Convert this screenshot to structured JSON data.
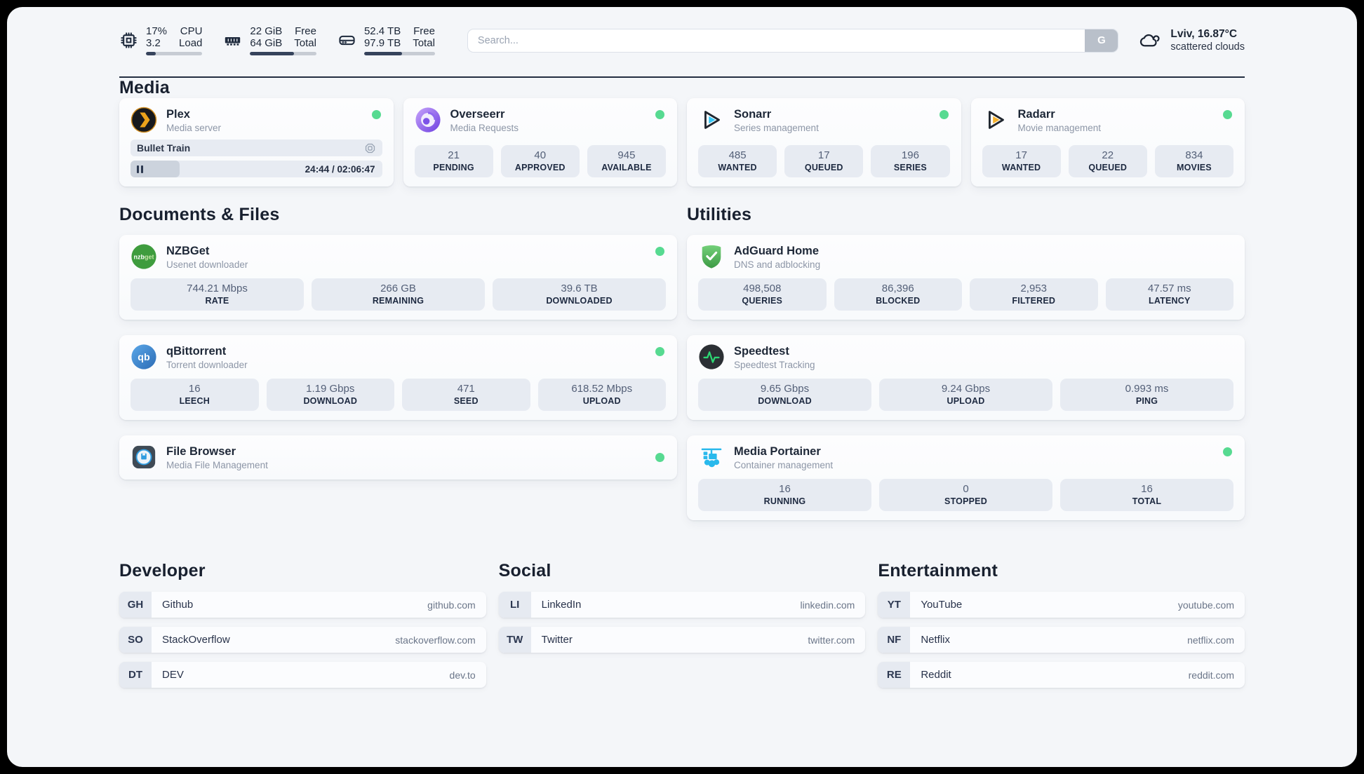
{
  "topbar": {
    "resources": [
      {
        "icon": "cpu-icon",
        "value1": "17%",
        "value2": "3.2",
        "label1": "CPU",
        "label2": "Load",
        "progress": 17
      },
      {
        "icon": "ram-icon",
        "value1": "22 GiB",
        "value2": "64 GiB",
        "label1": "Free",
        "label2": "Total",
        "progress": 66
      },
      {
        "icon": "disk-icon",
        "value1": "52.4 TB",
        "value2": "97.9 TB",
        "label1": "Free",
        "label2": "Total",
        "progress": 54
      }
    ],
    "search": {
      "placeholder": "Search...",
      "provider_button": "G"
    },
    "weather": {
      "location_temp": "Lviv, 16.87°C",
      "condition": "scattered clouds"
    }
  },
  "service_groups": [
    {
      "title": "Media",
      "services": [
        {
          "name": "Plex",
          "subtitle": "Media server",
          "status_dot": true,
          "player": {
            "title": "Bullet Train",
            "time_display": "24:44 / 02:06:47",
            "progress_pct": 19.5
          }
        },
        {
          "name": "Overseerr",
          "subtitle": "Media Requests",
          "status_dot": true,
          "stats": [
            {
              "value": "21",
              "label": "PENDING"
            },
            {
              "value": "40",
              "label": "APPROVED"
            },
            {
              "value": "945",
              "label": "AVAILABLE"
            }
          ]
        },
        {
          "name": "Sonarr",
          "subtitle": "Series management",
          "status_dot": true,
          "stats": [
            {
              "value": "485",
              "label": "WANTED"
            },
            {
              "value": "17",
              "label": "QUEUED"
            },
            {
              "value": "196",
              "label": "SERIES"
            }
          ]
        },
        {
          "name": "Radarr",
          "subtitle": "Movie management",
          "status_dot": true,
          "stats": [
            {
              "value": "17",
              "label": "WANTED"
            },
            {
              "value": "22",
              "label": "QUEUED"
            },
            {
              "value": "834",
              "label": "MOVIES"
            }
          ]
        }
      ]
    },
    {
      "title": "Documents & Files",
      "services": [
        {
          "name": "NZBGet",
          "subtitle": "Usenet downloader",
          "status_dot": true,
          "stats": [
            {
              "value": "744.21 Mbps",
              "label": "RATE"
            },
            {
              "value": "266 GB",
              "label": "REMAINING"
            },
            {
              "value": "39.6 TB",
              "label": "DOWNLOADED"
            }
          ]
        },
        {
          "name": "qBittorrent",
          "subtitle": "Torrent downloader",
          "status_dot": true,
          "stats": [
            {
              "value": "16",
              "label": "LEECH"
            },
            {
              "value": "1.19 Gbps",
              "label": "DOWNLOAD"
            },
            {
              "value": "471",
              "label": "SEED"
            },
            {
              "value": "618.52 Mbps",
              "label": "UPLOAD"
            }
          ]
        },
        {
          "name": "File Browser",
          "subtitle": "Media File Management",
          "status_dot": true,
          "stats": []
        }
      ]
    },
    {
      "title": "Utilities",
      "services": [
        {
          "name": "AdGuard Home",
          "subtitle": "DNS and adblocking",
          "status_dot": false,
          "stats": [
            {
              "value": "498,508",
              "label": "QUERIES"
            },
            {
              "value": "86,396",
              "label": "BLOCKED"
            },
            {
              "value": "2,953",
              "label": "FILTERED"
            },
            {
              "value": "47.57 ms",
              "label": "LATENCY"
            }
          ]
        },
        {
          "name": "Speedtest",
          "subtitle": "Speedtest Tracking",
          "status_dot": false,
          "stats": [
            {
              "value": "9.65 Gbps",
              "label": "DOWNLOAD"
            },
            {
              "value": "9.24 Gbps",
              "label": "UPLOAD"
            },
            {
              "value": "0.993 ms",
              "label": "PING"
            }
          ]
        },
        {
          "name": "Media Portainer",
          "subtitle": "Container management",
          "status_dot": true,
          "stats": [
            {
              "value": "16",
              "label": "RUNNING"
            },
            {
              "value": "0",
              "label": "STOPPED"
            },
            {
              "value": "16",
              "label": "TOTAL"
            }
          ]
        }
      ]
    }
  ],
  "bookmark_groups": [
    {
      "title": "Developer",
      "links": [
        {
          "abbr": "GH",
          "name": "Github",
          "domain": "github.com"
        },
        {
          "abbr": "SO",
          "name": "StackOverflow",
          "domain": "stackoverflow.com"
        },
        {
          "abbr": "DT",
          "name": "DEV",
          "domain": "dev.to"
        }
      ]
    },
    {
      "title": "Social",
      "links": [
        {
          "abbr": "LI",
          "name": "LinkedIn",
          "domain": "linkedin.com"
        },
        {
          "abbr": "TW",
          "name": "Twitter",
          "domain": "twitter.com"
        }
      ]
    },
    {
      "title": "Entertainment",
      "links": [
        {
          "abbr": "YT",
          "name": "YouTube",
          "domain": "youtube.com"
        },
        {
          "abbr": "NF",
          "name": "Netflix",
          "domain": "netflix.com"
        },
        {
          "abbr": "RE",
          "name": "Reddit",
          "domain": "reddit.com"
        }
      ]
    }
  ],
  "colors": {
    "status_online": "#57da91",
    "divider": "#232e41",
    "stat_box_bg": "#e7ebf2",
    "progress_fill": "#36435c"
  }
}
